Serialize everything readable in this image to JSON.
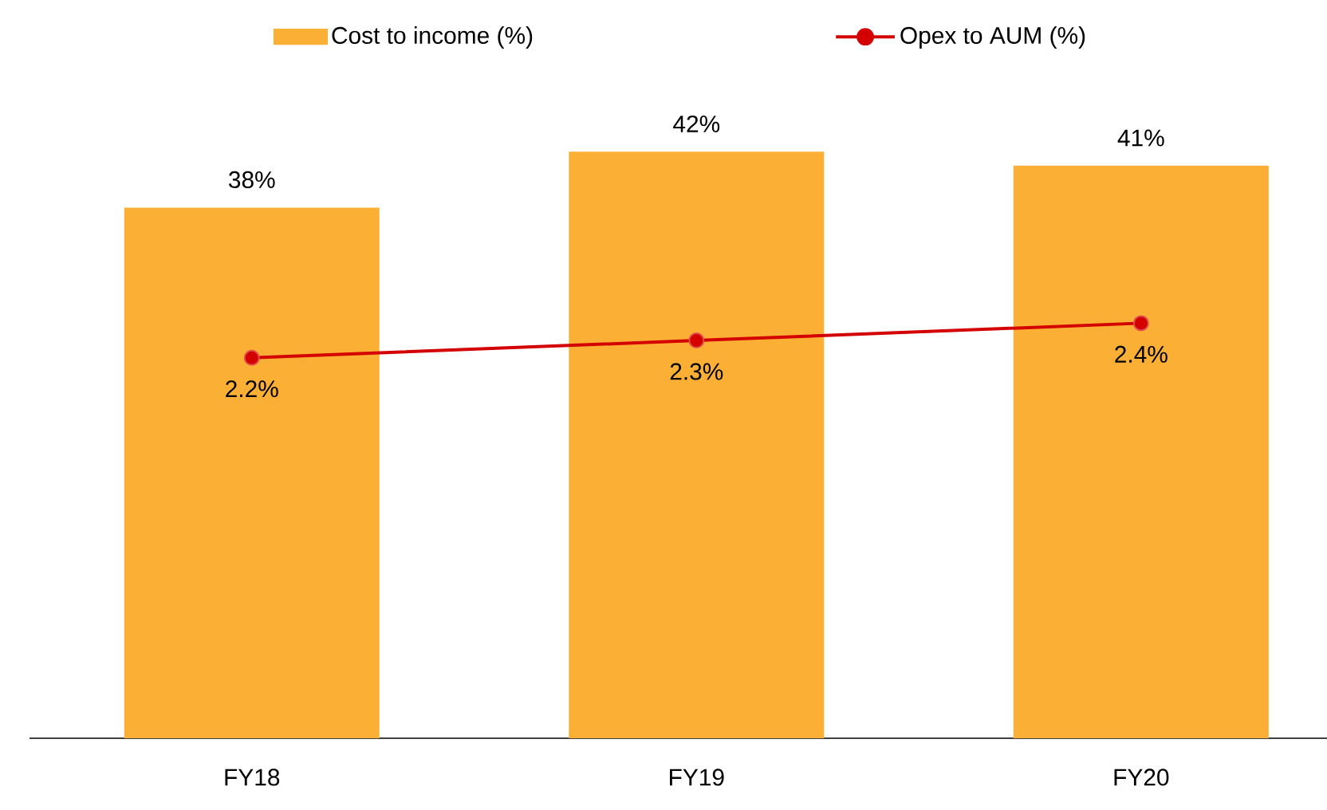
{
  "chart_data": {
    "type": "bar",
    "categories": [
      "FY18",
      "FY19",
      "FY20"
    ],
    "series": [
      {
        "name": "Cost to income (%)",
        "color": "#fbaf34",
        "values": [
          38,
          42,
          41
        ],
        "value_labels": [
          "38%",
          "42%",
          "41%"
        ]
      },
      {
        "name": "Opex to AUM (%)",
        "type": "line",
        "axis": "y2",
        "color": "#d40000",
        "marker": "circle",
        "values": [
          2.2,
          2.3,
          2.4
        ],
        "value_labels": [
          "2.2%",
          "2.3%",
          "2.4%"
        ]
      }
    ],
    "legend": "top"
  }
}
